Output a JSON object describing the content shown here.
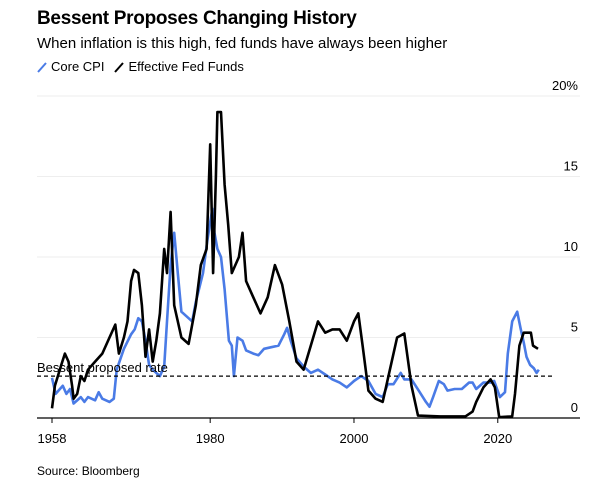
{
  "chart_data": {
    "type": "line",
    "title": "Bessent Proposes Changing History",
    "subtitle": "When inflation is this high, fed funds have always been higher",
    "source": "Source: Bloomberg",
    "xlabel": "",
    "ylabel": "",
    "xlim": [
      1958,
      2031
    ],
    "ylim": [
      0,
      20
    ],
    "x_ticks": [
      1958,
      1980,
      2000,
      2020
    ],
    "x_tick_labels": [
      "1958",
      "1980",
      "2000",
      "2020"
    ],
    "y_ticks": [
      0,
      5,
      10,
      15,
      20
    ],
    "y_tick_labels": [
      "0",
      "5",
      "10",
      "15",
      "20%"
    ],
    "grid": true,
    "legend_position": "top-left",
    "annotation": {
      "label": "Bessent proposed rate",
      "value": 2.6
    },
    "series": [
      {
        "name": "Core CPI",
        "color": "#4a7be6",
        "points": [
          [
            1958,
            2.5
          ],
          [
            1958.5,
            1.5
          ],
          [
            1959.5,
            2.0
          ],
          [
            1960,
            1.5
          ],
          [
            1960.5,
            1.8
          ],
          [
            1961,
            0.9
          ],
          [
            1962,
            1.3
          ],
          [
            1962.5,
            1.0
          ],
          [
            1963,
            1.3
          ],
          [
            1964,
            1.1
          ],
          [
            1964.5,
            1.6
          ],
          [
            1965,
            1.2
          ],
          [
            1966,
            1.0
          ],
          [
            1966.6,
            1.2
          ],
          [
            1967,
            3.0
          ],
          [
            1968,
            4.3
          ],
          [
            1969,
            5.2
          ],
          [
            1969.5,
            5.5
          ],
          [
            1970,
            6.2
          ],
          [
            1970.5,
            6.0
          ],
          [
            1971,
            4.8
          ],
          [
            1971.5,
            3.3
          ],
          [
            1972,
            3.0
          ],
          [
            1973,
            2.6
          ],
          [
            1973.6,
            3.2
          ],
          [
            1974,
            6.0
          ],
          [
            1974.5,
            9.5
          ],
          [
            1975,
            11.5
          ],
          [
            1975.5,
            9.0
          ],
          [
            1976,
            6.6
          ],
          [
            1977,
            6.2
          ],
          [
            1977.5,
            6.0
          ],
          [
            1978,
            7.2
          ],
          [
            1979,
            9.0
          ],
          [
            1979.6,
            11.0
          ],
          [
            1980.3,
            13.0
          ],
          [
            1980.6,
            11.5
          ],
          [
            1981,
            10.5
          ],
          [
            1981.5,
            10.0
          ],
          [
            1982,
            8.0
          ],
          [
            1982.6,
            4.8
          ],
          [
            1983,
            4.5
          ],
          [
            1983.3,
            2.6
          ],
          [
            1983.8,
            5.0
          ],
          [
            1984.5,
            4.8
          ],
          [
            1985,
            4.2
          ],
          [
            1986,
            4.0
          ],
          [
            1986.7,
            3.9
          ],
          [
            1987.5,
            4.3
          ],
          [
            1988.5,
            4.4
          ],
          [
            1989.5,
            4.5
          ],
          [
            1990.3,
            5.2
          ],
          [
            1990.7,
            5.6
          ],
          [
            1991.2,
            4.8
          ],
          [
            1992,
            3.7
          ],
          [
            1993,
            3.2
          ],
          [
            1994,
            2.8
          ],
          [
            1995,
            3.0
          ],
          [
            1996,
            2.7
          ],
          [
            1997,
            2.4
          ],
          [
            1998,
            2.2
          ],
          [
            1999,
            1.9
          ],
          [
            2000,
            2.3
          ],
          [
            2001,
            2.6
          ],
          [
            2002,
            2.3
          ],
          [
            2003,
            1.5
          ],
          [
            2004,
            1.3
          ],
          [
            2004.7,
            2.1
          ],
          [
            2005.5,
            2.1
          ],
          [
            2006.5,
            2.8
          ],
          [
            2007,
            2.4
          ],
          [
            2008,
            2.4
          ],
          [
            2009,
            1.7
          ],
          [
            2010,
            1.0
          ],
          [
            2010.5,
            0.7
          ],
          [
            2011,
            1.3
          ],
          [
            2011.8,
            2.3
          ],
          [
            2012.5,
            2.1
          ],
          [
            2013,
            1.7
          ],
          [
            2014,
            1.8
          ],
          [
            2015,
            1.8
          ],
          [
            2016,
            2.2
          ],
          [
            2016.5,
            2.2
          ],
          [
            2017,
            1.8
          ],
          [
            2018,
            2.2
          ],
          [
            2019,
            2.2
          ],
          [
            2019.5,
            2.3
          ],
          [
            2020.3,
            1.3
          ],
          [
            2021,
            1.6
          ],
          [
            2021.4,
            4.0
          ],
          [
            2022,
            6.0
          ],
          [
            2022.7,
            6.6
          ],
          [
            2023.2,
            5.5
          ],
          [
            2023.6,
            4.7
          ],
          [
            2024,
            3.8
          ],
          [
            2024.5,
            3.3
          ],
          [
            2025,
            3.1
          ],
          [
            2025.4,
            2.8
          ],
          [
            2025.7,
            3.0
          ]
        ]
      },
      {
        "name": "Effective Fed Funds",
        "color": "#000000",
        "points": [
          [
            1958,
            0.6
          ],
          [
            1958.4,
            2.0
          ],
          [
            1959.3,
            3.3
          ],
          [
            1959.8,
            4.0
          ],
          [
            1960.3,
            3.5
          ],
          [
            1960.8,
            2.0
          ],
          [
            1961,
            1.2
          ],
          [
            1961.5,
            1.5
          ],
          [
            1962,
            2.6
          ],
          [
            1962.5,
            2.3
          ],
          [
            1963,
            3.0
          ],
          [
            1964,
            3.5
          ],
          [
            1965,
            4.0
          ],
          [
            1966,
            5.0
          ],
          [
            1966.8,
            5.8
          ],
          [
            1967.3,
            4.0
          ],
          [
            1968,
            5.0
          ],
          [
            1968.5,
            6.0
          ],
          [
            1969,
            8.5
          ],
          [
            1969.4,
            9.2
          ],
          [
            1970,
            9.0
          ],
          [
            1970.5,
            7.0
          ],
          [
            1971,
            3.8
          ],
          [
            1971.5,
            5.5
          ],
          [
            1972,
            3.5
          ],
          [
            1972.5,
            4.8
          ],
          [
            1973,
            6.5
          ],
          [
            1973.6,
            10.5
          ],
          [
            1974,
            9.0
          ],
          [
            1974.5,
            12.8
          ],
          [
            1975,
            7.0
          ],
          [
            1975.5,
            6.0
          ],
          [
            1976,
            5.0
          ],
          [
            1977,
            4.6
          ],
          [
            1978,
            7.0
          ],
          [
            1978.7,
            9.5
          ],
          [
            1979.5,
            10.5
          ],
          [
            1980,
            17.0
          ],
          [
            1980.4,
            9.0
          ],
          [
            1980.8,
            15.0
          ],
          [
            1981,
            19.0
          ],
          [
            1981.5,
            19.0
          ],
          [
            1982,
            14.5
          ],
          [
            1982.5,
            12.0
          ],
          [
            1983,
            9.0
          ],
          [
            1984,
            10.0
          ],
          [
            1984.5,
            11.5
          ],
          [
            1985,
            8.5
          ],
          [
            1986,
            7.5
          ],
          [
            1987,
            6.5
          ],
          [
            1988,
            7.5
          ],
          [
            1989,
            9.5
          ],
          [
            1990,
            8.3
          ],
          [
            1991,
            6.0
          ],
          [
            1992,
            3.5
          ],
          [
            1993,
            3.0
          ],
          [
            1994,
            4.5
          ],
          [
            1995,
            6.0
          ],
          [
            1996,
            5.3
          ],
          [
            1997,
            5.5
          ],
          [
            1998,
            5.5
          ],
          [
            1999,
            4.8
          ],
          [
            2000,
            6.0
          ],
          [
            2000.6,
            6.5
          ],
          [
            2001.2,
            4.5
          ],
          [
            2002,
            1.7
          ],
          [
            2003,
            1.2
          ],
          [
            2004,
            1.0
          ],
          [
            2005,
            3.0
          ],
          [
            2006,
            5.0
          ],
          [
            2007,
            5.25
          ],
          [
            2008,
            2.0
          ],
          [
            2008.9,
            0.15
          ],
          [
            2012,
            0.1
          ],
          [
            2015.5,
            0.1
          ],
          [
            2016.5,
            0.4
          ],
          [
            2017,
            1.0
          ],
          [
            2018,
            1.9
          ],
          [
            2019,
            2.4
          ],
          [
            2019.6,
            1.9
          ],
          [
            2020.2,
            0.05
          ],
          [
            2022,
            0.1
          ],
          [
            2022.4,
            1.5
          ],
          [
            2023,
            4.5
          ],
          [
            2023.6,
            5.3
          ],
          [
            2024.6,
            5.3
          ],
          [
            2024.9,
            4.5
          ],
          [
            2025.6,
            4.3
          ]
        ]
      }
    ]
  }
}
